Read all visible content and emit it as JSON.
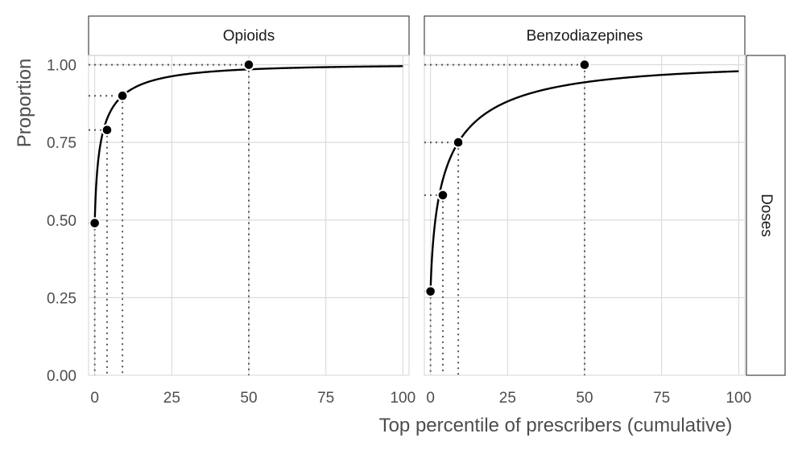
{
  "chart_data": {
    "type": "line",
    "xlabel": "Top percentile of prescribers (cumulative)",
    "ylabel": "Proportion",
    "row_strip": "Doses",
    "xlim": [
      -2,
      102
    ],
    "ylim": [
      0,
      1.03
    ],
    "x_ticks": [
      0,
      25,
      50,
      75,
      100
    ],
    "x_tick_labels": [
      "0",
      "25",
      "50",
      "75",
      "100"
    ],
    "y_ticks": [
      0,
      0.25,
      0.5,
      0.75,
      1.0
    ],
    "y_tick_labels": [
      "0.00",
      "0.25",
      "0.50",
      "0.75",
      "1.00"
    ],
    "grid": true,
    "panels": [
      {
        "strip": "Opioids",
        "points": [
          {
            "x": 0,
            "y": 0.49
          },
          {
            "x": 4,
            "y": 0.79
          },
          {
            "x": 9,
            "y": 0.9
          },
          {
            "x": 50,
            "y": 1.0
          }
        ]
      },
      {
        "strip": "Benzodiazepines",
        "points": [
          {
            "x": 0,
            "y": 0.27
          },
          {
            "x": 4,
            "y": 0.58
          },
          {
            "x": 9,
            "y": 0.75
          },
          {
            "x": 50,
            "y": 1.0
          }
        ]
      }
    ]
  }
}
